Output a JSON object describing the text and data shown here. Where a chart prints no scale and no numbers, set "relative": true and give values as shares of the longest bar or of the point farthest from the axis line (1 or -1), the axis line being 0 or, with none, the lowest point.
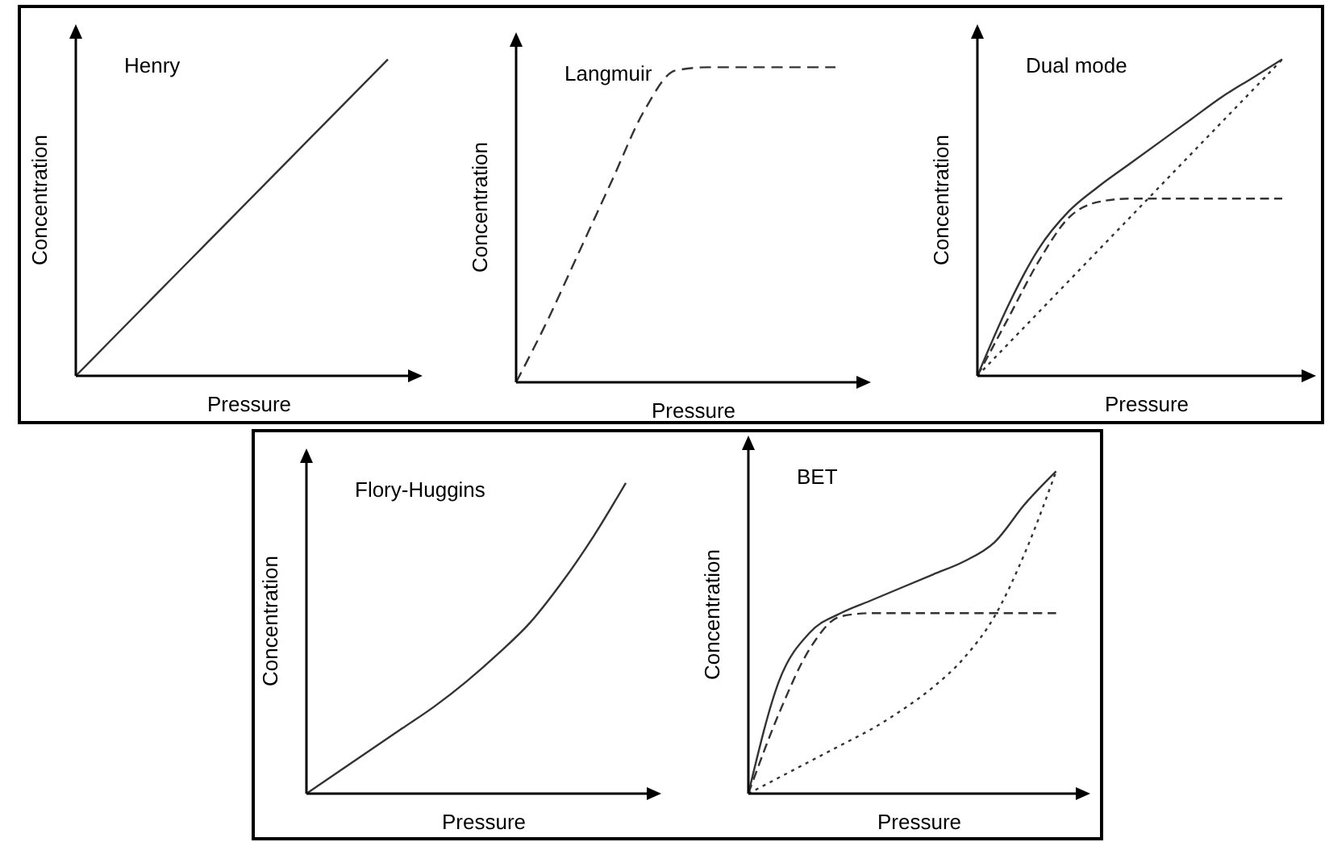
{
  "chart_data": [
    {
      "type": "line",
      "relative": true,
      "tick_labels": false,
      "title": "Henry",
      "xlabel": "Pressure",
      "ylabel": "Concentration",
      "categories": [
        null,
        null,
        null,
        null,
        null,
        null,
        null,
        null,
        null,
        null,
        null
      ],
      "series": [
        {
          "color": "#333333",
          "line_style": "solid",
          "values": [
            0,
            0.1,
            0.2,
            0.3,
            0.4,
            0.5,
            0.6,
            0.7,
            0.8,
            0.9,
            1
          ]
        }
      ]
    },
    {
      "type": "line",
      "relative": true,
      "tick_labels": false,
      "title": "Langmuir",
      "xlabel": "Pressure",
      "ylabel": "Concentration",
      "categories": [
        null,
        null,
        null,
        null,
        null,
        null,
        null,
        null,
        null,
        null,
        null
      ],
      "series": [
        {
          "color": "#333333",
          "line_style": "dashed",
          "values": [
            0,
            0.2,
            0.42,
            0.64,
            0.86,
            0.99,
            1,
            1,
            1,
            1,
            1
          ]
        }
      ]
    },
    {
      "type": "line",
      "relative": true,
      "tick_labels": false,
      "title": "Dual mode",
      "xlabel": "Pressure",
      "ylabel": "Concentration",
      "categories": [
        null,
        null,
        null,
        null,
        null,
        null,
        null,
        null,
        null,
        null,
        null
      ],
      "series": [
        {
          "color": "#333333",
          "line_style": "solid",
          "values": [
            0,
            0.22,
            0.4,
            0.52,
            0.6,
            0.67,
            0.74,
            0.81,
            0.88,
            0.94,
            1
          ]
        },
        {
          "color": "#333333",
          "line_style": "dashed",
          "values": [
            0,
            0.18,
            0.36,
            0.5,
            0.55,
            0.56,
            0.56,
            0.56,
            0.56,
            0.56,
            0.56
          ]
        },
        {
          "color": "#333333",
          "line_style": "dotted",
          "values": [
            0,
            0.1,
            0.2,
            0.3,
            0.4,
            0.5,
            0.6,
            0.7,
            0.8,
            0.9,
            1
          ]
        }
      ]
    },
    {
      "type": "line",
      "relative": true,
      "tick_labels": false,
      "title": "Flory-Huggins",
      "xlabel": "Pressure",
      "ylabel": "Concentration",
      "categories": [
        null,
        null,
        null,
        null,
        null,
        null,
        null,
        null,
        null,
        null,
        null
      ],
      "series": [
        {
          "color": "#333333",
          "line_style": "solid",
          "values": [
            0,
            0.07,
            0.14,
            0.21,
            0.28,
            0.36,
            0.45,
            0.55,
            0.68,
            0.83,
            1
          ]
        }
      ]
    },
    {
      "type": "line",
      "relative": true,
      "tick_labels": false,
      "title": "BET",
      "xlabel": "Pressure",
      "ylabel": "Concentration",
      "categories": [
        null,
        null,
        null,
        null,
        null,
        null,
        null,
        null,
        null,
        null,
        null
      ],
      "series": [
        {
          "color": "#333333",
          "line_style": "solid",
          "values": [
            0,
            0.35,
            0.5,
            0.56,
            0.6,
            0.64,
            0.68,
            0.72,
            0.78,
            0.9,
            1
          ]
        },
        {
          "color": "#333333",
          "line_style": "dashed",
          "values": [
            0,
            0.25,
            0.45,
            0.55,
            0.56,
            0.56,
            0.56,
            0.56,
            0.56,
            0.56,
            0.56
          ]
        },
        {
          "color": "#333333",
          "line_style": "dotted",
          "values": [
            0,
            0.05,
            0.1,
            0.15,
            0.2,
            0.26,
            0.33,
            0.42,
            0.55,
            0.75,
            1
          ]
        }
      ]
    }
  ]
}
